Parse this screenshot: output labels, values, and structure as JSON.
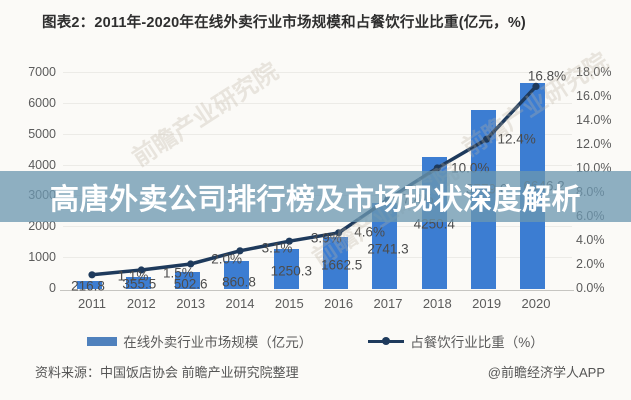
{
  "title": "图表2：2011年-2020年在线外卖行业市场规模和占餐饮行业比重(亿元，%)",
  "overlay_banner": {
    "text": "高唐外卖公司排行榜及市场现状深度解析"
  },
  "watermark_text": "前瞻产业研究院",
  "footer": {
    "source": "资料来源：中国饭店协会 前瞻产业研究院整理",
    "credit": "@前瞻经济学人APP"
  },
  "chart_data": {
    "type": "bar",
    "combo": "bar+line",
    "title": "图表2：2011年-2020年在线外卖行业市场规模和占餐饮行业比重(亿元，%)",
    "categories": [
      "2011",
      "2012",
      "2013",
      "2014",
      "2015",
      "2016",
      "2017",
      "2018",
      "2019",
      "2020"
    ],
    "series": [
      {
        "name": "在线外卖行业市场规模（亿元）",
        "type": "bar",
        "axis": "left",
        "color": "#3c7dd2",
        "values": [
          216.8,
          355.5,
          502.6,
          860.8,
          1250.3,
          1662.5,
          2741.3,
          4250.4,
          5779.6,
          6646.2
        ],
        "labels": [
          "216.8",
          "355.5",
          "502.6",
          "860.8",
          "1250.3",
          "1662.5",
          "2741.3",
          "4250.4",
          "5779.6",
          "6646.2"
        ]
      },
      {
        "name": "占餐饮行业比重（%）",
        "type": "line",
        "axis": "right",
        "color": "#1e3a5c",
        "values": [
          1.1,
          1.5,
          2.0,
          3.1,
          3.9,
          4.6,
          7.4,
          10.0,
          12.4,
          16.8
        ],
        "labels": [
          "1.1%",
          "1.5%",
          "2.0%",
          "3.1%",
          "3.9%",
          "4.6%",
          "7.4%",
          "10.0%",
          "12.4%",
          "16.8%"
        ]
      }
    ],
    "left_axis": {
      "min": 0,
      "max": 7000,
      "step": 1000,
      "ticks": [
        "0",
        "1000",
        "2000",
        "3000",
        "4000",
        "5000",
        "6000",
        "7000"
      ]
    },
    "right_axis": {
      "min": 0,
      "max": 18,
      "step": 2,
      "ticks": [
        "0.0%",
        "2.0%",
        "4.0%",
        "6.0%",
        "8.0%",
        "10.0%",
        "12.0%",
        "14.0%",
        "16.0%",
        "18.0%"
      ]
    },
    "grid": true,
    "legend_position": "bottom"
  }
}
